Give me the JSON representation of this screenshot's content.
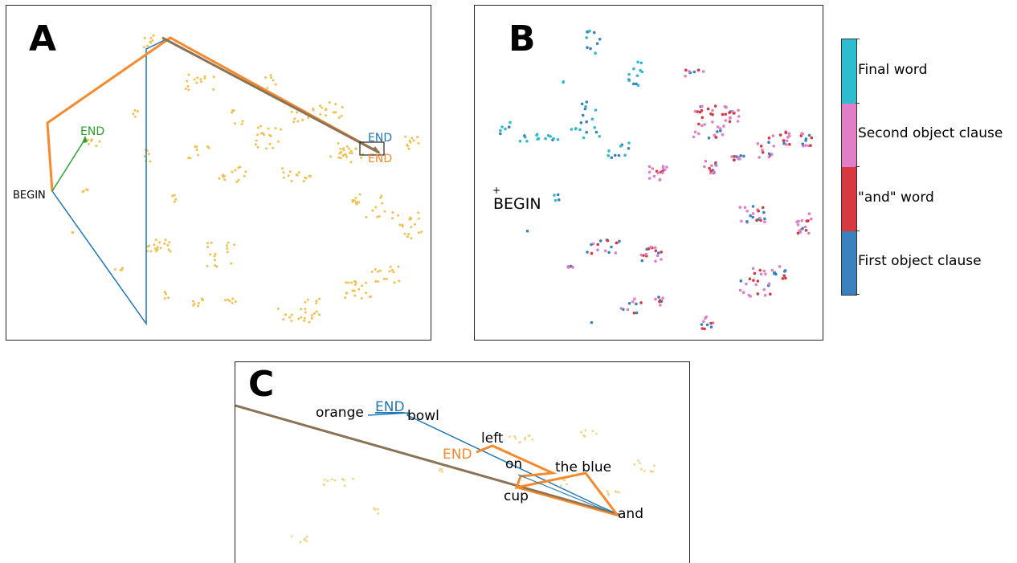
{
  "panels": {
    "A": {
      "letter": "A",
      "labels": {
        "begin": "BEGIN",
        "end_green": "END",
        "end_blue": "END",
        "end_orange": "END"
      }
    },
    "B": {
      "letter": "B",
      "labels": {
        "begin_marker": "+",
        "begin": "BEGIN"
      }
    },
    "C": {
      "letter": "C",
      "words": {
        "orange": "orange",
        "end_blue": "END",
        "bowl": "bowl",
        "left": "left",
        "end_orange": "END",
        "on": "on",
        "the_blue": "the blue",
        "cup": "cup",
        "and": "and"
      }
    }
  },
  "colorbar": {
    "segments": [
      {
        "label": "Final word",
        "color": "#2ebdcf"
      },
      {
        "label": "Second object clause",
        "color": "#e07fc8"
      },
      {
        "label": "\"and\" word",
        "color": "#d63a3f"
      },
      {
        "label": "First object clause",
        "color": "#3a82bd"
      }
    ]
  },
  "colors": {
    "dots": "#f0c050",
    "blue": "#1f77b4",
    "orange": "#f7892c",
    "green": "#2ca02c",
    "brown": "#8b7355"
  },
  "chart_data": [
    {
      "type": "scatter",
      "panel": "A",
      "title": "",
      "xlabel": "",
      "ylabel": "",
      "grid": false,
      "series": [
        {
          "points": [
            [
              63,
              230
            ],
            [
              180,
              395
            ],
            [
              180,
              55
            ],
            [
              205,
              45
            ],
            [
              470,
              185
            ]
          ]
        },
        {
          "points": [
            [
              63,
              230
            ],
            [
              52,
              145
            ],
            [
              200,
              40
            ],
            [
              470,
              185
            ]
          ]
        },
        {
          "points": [
            [
              63,
              230
            ],
            [
              100,
              165
            ]
          ]
        }
      ]
    },
    {
      "type": "scatter",
      "panel": "B",
      "title": "",
      "xlabel": "",
      "ylabel": "",
      "grid": false
    },
    {
      "type": "scatter",
      "panel": "C",
      "title": "",
      "xlabel": "",
      "ylabel": "",
      "grid": false,
      "series": [
        {
          "points": [
            [
              165,
              65
            ],
            [
              215,
              63
            ],
            [
              455,
              180
            ],
            [
              475,
              188
            ],
            [
              0,
              55
            ]
          ]
        },
        {
          "points": [
            [
              300,
              112
            ],
            [
              320,
              104
            ],
            [
              395,
              138
            ],
            [
              355,
              142
            ],
            [
              350,
              155
            ],
            [
              435,
              137
            ],
            [
              475,
              190
            ],
            [
              0,
              55
            ]
          ]
        }
      ]
    }
  ]
}
